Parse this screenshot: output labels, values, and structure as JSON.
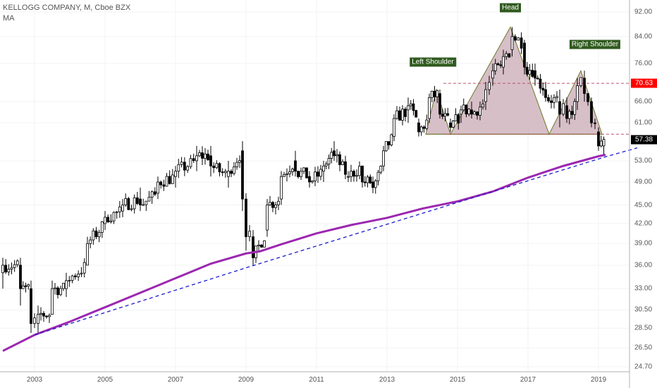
{
  "header": {
    "symbol_line": "KELLOGG COMPANY, M, Cboe BZX",
    "indicator": "MA"
  },
  "price_scale": {
    "labels": [
      "92.00",
      "84.00",
      "76.00",
      "70.63",
      "66.00",
      "61.00",
      "57.38",
      "53.00",
      "49.00",
      "45.00",
      "42.00",
      "39.00",
      "36.00",
      "33.00",
      "30.50",
      "28.50",
      "26.50",
      "24.70"
    ],
    "current_price": {
      "label": "57.38",
      "color": "#000000"
    },
    "resistance_price": {
      "label": "70.63",
      "color": "#ff0000"
    }
  },
  "time_scale": {
    "labels": [
      "2003",
      "2005",
      "2007",
      "2009",
      "2011",
      "2013",
      "2015",
      "2017",
      "2019"
    ]
  },
  "annotations": [
    {
      "id": "left-shoulder",
      "label": "Left Shoulder"
    },
    {
      "id": "head",
      "label": "Head"
    },
    {
      "id": "right-shoulder",
      "label": "Right Shoulder"
    }
  ],
  "colors": {
    "background": "#ffffff",
    "candle_up": "#ffffff",
    "candle_down": "#000000",
    "candle_outline": "#000000",
    "moving_average": "#9c27b0",
    "trendline": "#1a1acc",
    "neckline": "#c0506a",
    "pattern_fill": "#c9a9b6",
    "pattern_outline": "#6e7a2e",
    "label_bg": "#2f5a1e"
  },
  "chart_data": {
    "type": "candlestick",
    "title": "KELLOGG COMPANY, M, Cboe BZX",
    "scale": "log",
    "ylim": [
      24.7,
      92.0
    ],
    "xlim": [
      2002.1,
      2020.7
    ],
    "series": [
      {
        "name": "MA",
        "points": [
          [
            2002.1,
            26.2
          ],
          [
            2003.0,
            27.8
          ],
          [
            2004.0,
            29.2
          ],
          [
            2005.0,
            30.8
          ],
          [
            2006.0,
            32.5
          ],
          [
            2007.0,
            34.3
          ],
          [
            2008.0,
            36.2
          ],
          [
            2009.0,
            37.6
          ],
          [
            2009.4,
            37.9
          ],
          [
            2010.0,
            38.9
          ],
          [
            2011.0,
            40.5
          ],
          [
            2012.0,
            41.8
          ],
          [
            2013.0,
            42.9
          ],
          [
            2014.0,
            44.4
          ],
          [
            2015.0,
            45.6
          ],
          [
            2016.0,
            47.3
          ],
          [
            2017.0,
            49.8
          ],
          [
            2018.0,
            52.0
          ],
          [
            2019.0,
            53.9
          ],
          [
            2019.2,
            54.2
          ]
        ]
      },
      {
        "name": "trendline",
        "points": [
          [
            2003.0,
            27.8
          ],
          [
            2009.1,
            35.8
          ],
          [
            2019.2,
            53.8
          ],
          [
            2020.1,
            55.6
          ]
        ]
      }
    ],
    "price_levels": [
      {
        "value": 70.63,
        "style": "dashed"
      },
      {
        "value": 58.5,
        "style": "dashed"
      }
    ],
    "head_and_shoulders": {
      "points": [
        [
          2014.1,
          58.5
        ],
        [
          2014.4,
          69.0
        ],
        [
          2014.8,
          58.5
        ],
        [
          2016.5,
          87.0
        ],
        [
          2017.6,
          58.5
        ],
        [
          2018.5,
          74.0
        ],
        [
          2019.1,
          58.5
        ]
      ]
    },
    "anchors_ohlc": [
      [
        2002.1,
        35,
        37,
        33,
        36
      ],
      [
        2002.6,
        36,
        37,
        31,
        33
      ],
      [
        2002.9,
        33,
        34,
        28,
        29
      ],
      [
        2003.1,
        29,
        31,
        28,
        30
      ],
      [
        2003.5,
        30,
        34,
        30,
        33
      ],
      [
        2003.9,
        33,
        35,
        32,
        34
      ],
      [
        2004.5,
        36,
        40,
        36,
        39
      ],
      [
        2005.0,
        42,
        44,
        41,
        43
      ],
      [
        2005.5,
        44,
        46,
        43,
        45
      ],
      [
        2006.0,
        46,
        48,
        44,
        45
      ],
      [
        2006.5,
        47,
        50,
        46,
        49
      ],
      [
        2007.0,
        50,
        52,
        48,
        51
      ],
      [
        2007.6,
        53,
        56,
        51,
        54
      ],
      [
        2008.0,
        54,
        56,
        50,
        52
      ],
      [
        2008.5,
        50,
        53,
        48,
        51
      ],
      [
        2008.9,
        55,
        57,
        44,
        46
      ],
      [
        2009.0,
        46,
        47,
        38,
        40
      ],
      [
        2009.2,
        40,
        41,
        36,
        37
      ],
      [
        2009.6,
        41,
        46,
        40,
        45
      ],
      [
        2010.0,
        46,
        51,
        45,
        50
      ],
      [
        2010.4,
        53,
        55,
        50,
        51
      ],
      [
        2010.8,
        50,
        51,
        48,
        49
      ],
      [
        2011.2,
        51,
        53,
        49,
        52
      ],
      [
        2011.5,
        55,
        57,
        53,
        54
      ],
      [
        2011.9,
        50,
        51,
        49,
        50
      ],
      [
        2012.3,
        52,
        52,
        48,
        49
      ],
      [
        2012.6,
        49,
        50,
        47,
        48
      ],
      [
        2012.9,
        52,
        56,
        51,
        55
      ],
      [
        2013.2,
        58,
        63,
        57,
        62
      ],
      [
        2013.6,
        64,
        67,
        61,
        65
      ],
      [
        2013.9,
        61,
        62,
        58,
        59
      ],
      [
        2014.2,
        62,
        68,
        61,
        67
      ],
      [
        2014.5,
        68,
        69,
        62,
        63
      ],
      [
        2014.8,
        61,
        62,
        59,
        60
      ],
      [
        2015.1,
        63,
        65,
        61,
        64
      ],
      [
        2015.4,
        64,
        66,
        62,
        63
      ],
      [
        2015.8,
        66,
        71,
        64,
        69
      ],
      [
        2016.0,
        72,
        76,
        70,
        74
      ],
      [
        2016.3,
        75,
        80,
        73,
        78
      ],
      [
        2016.55,
        80,
        87,
        78,
        84
      ],
      [
        2016.9,
        82,
        83,
        73,
        75
      ],
      [
        2017.2,
        74,
        76,
        70,
        72
      ],
      [
        2017.5,
        69,
        71,
        66,
        67
      ],
      [
        2017.9,
        66,
        69,
        60,
        63
      ],
      [
        2018.1,
        65,
        67,
        61,
        62
      ],
      [
        2018.4,
        66,
        72,
        64,
        70
      ],
      [
        2018.6,
        72,
        74,
        66,
        68
      ],
      [
        2018.8,
        66,
        67,
        60,
        61
      ],
      [
        2019.0,
        59,
        60,
        55,
        56
      ],
      [
        2019.15,
        56,
        58,
        54,
        57.38
      ]
    ]
  }
}
